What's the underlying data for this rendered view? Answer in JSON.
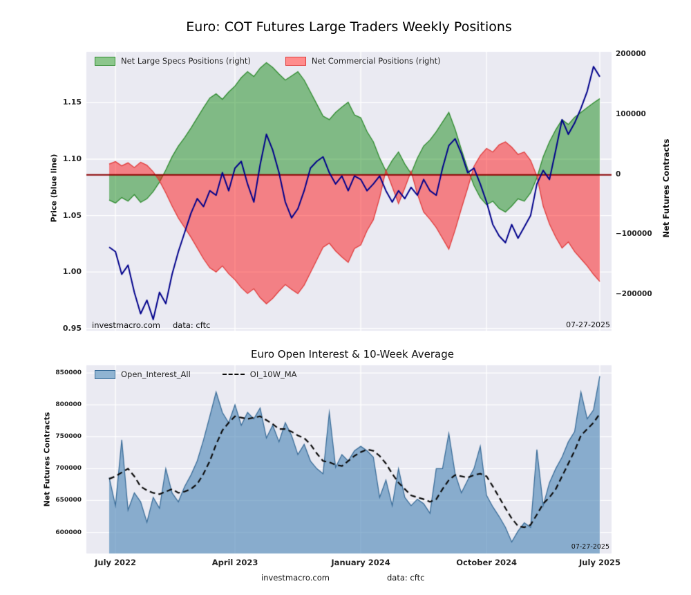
{
  "figure": {
    "background": "#ffffff",
    "plot_background": "#eaeaf2",
    "grid_color": "#ffffff"
  },
  "chart_data": [
    {
      "type": "area",
      "title": "Euro: COT Futures Large Traders Weekly Positions",
      "ylabel_left": "Price (blue line)",
      "ylabel_right": "Net Futures Contracts",
      "left_ticks": [
        "0.95",
        "1.00",
        "1.05",
        "1.10",
        "1.15"
      ],
      "left_tick_values": [
        0.95,
        1.0,
        1.05,
        1.1,
        1.15
      ],
      "left_ylim": [
        0.948,
        1.195
      ],
      "right_ticks": [
        "200000",
        "100000",
        "0",
        "−100000",
        "−200000"
      ],
      "right_tick_values": [
        200000,
        100000,
        0,
        -100000,
        -200000
      ],
      "right_ylim": [
        -260000,
        205000
      ],
      "zero_line_color": "#8b0000",
      "price_line_color": "#00008b",
      "legend": [
        {
          "label": "Net Large Specs Positions (right)",
          "fill": "#8cc68c",
          "edge": "#2e8b2e"
        },
        {
          "label": "Net Commercial Positions (right)",
          "fill": "#ff8c8c",
          "edge": "#e03c3c"
        }
      ],
      "annotations": {
        "source": "investmacro.com",
        "data_note": "data: cftc",
        "date": "07-27-2025"
      },
      "series": [
        {
          "name": "Net Large Specs Positions",
          "axis": "right",
          "style": "area",
          "fill": "rgba(0,128,0,0.45)",
          "edge": "#2e8b2e",
          "baseline": 0,
          "values": [
            -42000,
            -47000,
            -38000,
            -44000,
            -33000,
            -46000,
            -40000,
            -28000,
            -12000,
            8000,
            30000,
            48000,
            62000,
            78000,
            95000,
            112000,
            128000,
            135000,
            126000,
            138000,
            148000,
            162000,
            172000,
            164000,
            178000,
            187000,
            179000,
            168000,
            158000,
            165000,
            172000,
            158000,
            138000,
            118000,
            98000,
            92000,
            104000,
            113000,
            121000,
            100000,
            95000,
            72000,
            55000,
            28000,
            6000,
            24000,
            38000,
            18000,
            2000,
            28000,
            48000,
            58000,
            72000,
            88000,
            104000,
            76000,
            42000,
            10000,
            -18000,
            -38000,
            -50000,
            -44000,
            -56000,
            -62000,
            -52000,
            -40000,
            -44000,
            -30000,
            -5000,
            30000,
            55000,
            75000,
            92000,
            84000,
            96000,
            104000,
            112000,
            120000,
            127000
          ]
        },
        {
          "name": "Net Commercial Positions",
          "axis": "right",
          "style": "area",
          "fill": "rgba(255,0,0,0.45)",
          "edge": "#e03c3c",
          "baseline": 0,
          "values": [
            18000,
            22000,
            15000,
            20000,
            12000,
            21000,
            16000,
            5000,
            -10000,
            -30000,
            -52000,
            -72000,
            -88000,
            -104000,
            -122000,
            -140000,
            -155000,
            -162000,
            -152000,
            -165000,
            -175000,
            -188000,
            -198000,
            -190000,
            -205000,
            -215000,
            -206000,
            -194000,
            -183000,
            -191000,
            -198000,
            -184000,
            -163000,
            -142000,
            -121000,
            -114000,
            -127000,
            -137000,
            -146000,
            -123000,
            -117000,
            -93000,
            -75000,
            -38000,
            8000,
            -20000,
            -48000,
            -22000,
            6000,
            -32000,
            -62000,
            -74000,
            -88000,
            -106000,
            -124000,
            -92000,
            -56000,
            -22000,
            14000,
            32000,
            44000,
            38000,
            50000,
            55000,
            46000,
            34000,
            38000,
            24000,
            -2000,
            -52000,
            -82000,
            -104000,
            -122000,
            -112000,
            -128000,
            -140000,
            -152000,
            -166000,
            -178000
          ]
        },
        {
          "name": "Price",
          "axis": "left",
          "style": "line",
          "color": "#00008b",
          "values": [
            1.022,
            1.018,
            0.998,
            1.006,
            0.982,
            0.963,
            0.975,
            0.958,
            0.982,
            0.972,
            0.998,
            1.018,
            1.035,
            1.052,
            1.065,
            1.058,
            1.072,
            1.068,
            1.088,
            1.072,
            1.092,
            1.098,
            1.078,
            1.062,
            1.095,
            1.122,
            1.108,
            1.088,
            1.062,
            1.048,
            1.056,
            1.072,
            1.092,
            1.098,
            1.102,
            1.088,
            1.078,
            1.085,
            1.072,
            1.085,
            1.082,
            1.072,
            1.078,
            1.085,
            1.072,
            1.062,
            1.072,
            1.065,
            1.075,
            1.068,
            1.082,
            1.072,
            1.068,
            1.092,
            1.112,
            1.118,
            1.105,
            1.088,
            1.092,
            1.078,
            1.062,
            1.042,
            1.032,
            1.026,
            1.042,
            1.03,
            1.04,
            1.05,
            1.078,
            1.09,
            1.082,
            1.108,
            1.135,
            1.122,
            1.132,
            1.145,
            1.16,
            1.182,
            1.173
          ]
        }
      ]
    },
    {
      "type": "area",
      "title": "Euro Open Interest & 10-Week Average",
      "ylabel": "Net Futures Contracts",
      "ytick_labels": [
        "600000",
        "650000",
        "700000",
        "750000",
        "800000",
        "850000"
      ],
      "ytick_values": [
        600000,
        650000,
        700000,
        750000,
        800000,
        850000
      ],
      "ylim": [
        567000,
        862000
      ],
      "xtick_labels": [
        "July 2022",
        "April 2023",
        "January 2024",
        "October 2024",
        "July 2025"
      ],
      "xtick_idx": [
        1,
        20,
        40,
        60,
        78
      ],
      "legend": [
        {
          "label": "Open_Interest_All",
          "fill": "#90b4d2",
          "edge": "#3a6d99"
        },
        {
          "label": "OI_10W_MA",
          "color": "#0a0a0a"
        }
      ],
      "annotations": {
        "source": "investmacro.com",
        "data_note": "data: cftc",
        "date": "07-27-2025"
      },
      "series": [
        {
          "name": "Open_Interest_All",
          "style": "area",
          "fill": "rgba(70,130,180,0.6)",
          "edge": "#3a6d99",
          "values": [
            686000,
            642000,
            745000,
            635000,
            662000,
            648000,
            616000,
            655000,
            638000,
            700000,
            662000,
            648000,
            672000,
            690000,
            712000,
            745000,
            782000,
            820000,
            788000,
            772000,
            800000,
            768000,
            788000,
            778000,
            795000,
            748000,
            768000,
            742000,
            772000,
            752000,
            722000,
            738000,
            712000,
            700000,
            692000,
            788000,
            702000,
            722000,
            712000,
            728000,
            735000,
            728000,
            718000,
            655000,
            682000,
            642000,
            700000,
            655000,
            642000,
            652000,
            645000,
            630000,
            700000,
            700000,
            755000,
            692000,
            662000,
            682000,
            700000,
            735000,
            658000,
            640000,
            625000,
            608000,
            585000,
            602000,
            615000,
            608000,
            730000,
            642000,
            678000,
            700000,
            718000,
            742000,
            758000,
            820000,
            778000,
            792000,
            845000
          ]
        },
        {
          "name": "OI_10W_MA",
          "style": "dashed",
          "color": "#0a0a0a",
          "values": [
            684000,
            688000,
            694000,
            700000,
            688000,
            672000,
            666000,
            662000,
            660000,
            664000,
            668000,
            662000,
            664000,
            668000,
            676000,
            692000,
            712000,
            738000,
            760000,
            772000,
            782000,
            780000,
            778000,
            780000,
            782000,
            776000,
            770000,
            762000,
            762000,
            758000,
            752000,
            748000,
            738000,
            724000,
            712000,
            710000,
            706000,
            704000,
            712000,
            720000,
            726000,
            730000,
            728000,
            720000,
            708000,
            692000,
            678000,
            668000,
            658000,
            655000,
            652000,
            648000,
            652000,
            668000,
            682000,
            690000,
            688000,
            686000,
            690000,
            692000,
            688000,
            672000,
            655000,
            638000,
            622000,
            610000,
            608000,
            612000,
            628000,
            645000,
            655000,
            668000,
            688000,
            708000,
            728000,
            752000,
            762000,
            772000,
            786000
          ]
        }
      ]
    }
  ]
}
